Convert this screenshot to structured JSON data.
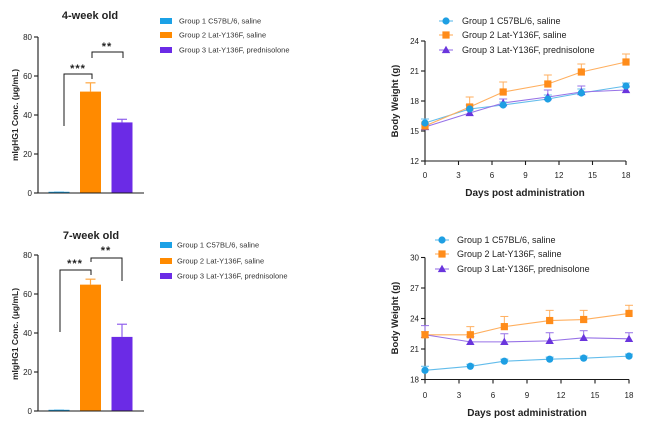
{
  "chart_data": [
    {
      "type": "bar",
      "title": "4-week old",
      "xlabel": "",
      "ylabel": "mIgHG1 Conc. (μg/mL)",
      "ylim": [
        0,
        80
      ],
      "yticks": [
        0,
        20,
        40,
        60,
        80
      ],
      "grid": false,
      "legend": "right",
      "categories": [
        "Group 1 C57BL/6, saline",
        "Group 2 Lat-Y136F, saline",
        "Group 3 Lat-Y136F, prednisolone"
      ],
      "values": [
        0.3,
        52.0,
        36.2
      ],
      "errors": [
        0.1,
        4.5,
        1.6
      ],
      "colors": [
        "#1BA1E6",
        "#FF8A00",
        "#6B2BE6"
      ],
      "significance": [
        {
          "between": [
            0,
            1
          ],
          "label": "***"
        },
        {
          "between": [
            1,
            2
          ],
          "label": "**"
        }
      ]
    },
    {
      "type": "line",
      "title": "",
      "xlabel": "Days post administration",
      "ylabel": "Body Weight (g)",
      "xlim": [
        0,
        18
      ],
      "xticks": [
        0,
        3,
        6,
        9,
        12,
        15,
        18
      ],
      "ylim": [
        12,
        24
      ],
      "yticks": [
        12,
        15,
        18,
        21,
        24
      ],
      "grid": false,
      "legend": "top-left",
      "x": [
        0,
        4,
        7,
        11,
        14,
        18
      ],
      "series": [
        {
          "name": "Group 1 C57BL/6, saline",
          "marker": "circle",
          "color": "#1E9FE3",
          "values": [
            15.8,
            17.2,
            17.6,
            18.2,
            18.8,
            19.5
          ],
          "errors": [
            0.4,
            0.4,
            0.3,
            0.4,
            0.4,
            0.3
          ]
        },
        {
          "name": "Group 2 Lat-Y136F, saline",
          "marker": "square",
          "color": "#FF8C1A",
          "values": [
            15.5,
            17.4,
            18.9,
            19.7,
            20.9,
            21.9
          ],
          "errors": [
            0.4,
            1.0,
            1.0,
            0.9,
            0.8,
            0.8
          ]
        },
        {
          "name": "Group 3 Lat-Y136F,  prednisolone",
          "marker": "triangle",
          "color": "#6A35DD",
          "values": [
            15.4,
            16.8,
            17.8,
            18.4,
            18.9,
            19.1
          ],
          "errors": [
            0.3,
            0.3,
            0.4,
            0.7,
            0.6,
            0.3
          ]
        }
      ]
    },
    {
      "type": "bar",
      "title": "7-week old",
      "xlabel": "",
      "ylabel": "mIgHG1 Conc. (μg/mL)",
      "ylim": [
        0,
        80
      ],
      "yticks": [
        0,
        20,
        40,
        60,
        80
      ],
      "grid": false,
      "legend": "right",
      "categories": [
        "Group 1 C57BL/6, saline",
        "Group 2 Lat-Y136F, saline",
        "Group 3 Lat-Y136F, prednisolone"
      ],
      "values": [
        0.3,
        64.8,
        38.0
      ],
      "errors": [
        0.1,
        2.8,
        6.5
      ],
      "colors": [
        "#1BA1E6",
        "#FF8A00",
        "#6B2BE6"
      ],
      "significance": [
        {
          "between": [
            0,
            1
          ],
          "label": "***"
        },
        {
          "between": [
            1,
            2
          ],
          "label": "**"
        }
      ]
    },
    {
      "type": "line",
      "title": "",
      "xlabel": "Days post administration",
      "ylabel": "Body Weight (g)",
      "xlim": [
        0,
        18
      ],
      "xticks": [
        0,
        3,
        6,
        9,
        12,
        15,
        18
      ],
      "ylim": [
        18,
        30
      ],
      "yticks": [
        18,
        21,
        24,
        27,
        30
      ],
      "grid": false,
      "legend": "top-left",
      "x": [
        0,
        4,
        7,
        11,
        14,
        18
      ],
      "series": [
        {
          "name": "Group 1 C57BL/6, saline",
          "marker": "circle",
          "color": "#1E9FE3",
          "values": [
            18.9,
            19.3,
            19.8,
            20.0,
            20.1,
            20.3
          ],
          "errors": [
            0.4,
            0.2,
            0.2,
            0.2,
            0.2,
            0.2
          ]
        },
        {
          "name": "Group 2 Lat-Y136F, saline",
          "marker": "square",
          "color": "#FF8C1A",
          "values": [
            22.4,
            22.4,
            23.2,
            23.8,
            23.9,
            24.5
          ],
          "errors": [
            0.3,
            0.8,
            1.0,
            1.0,
            0.9,
            0.8
          ]
        },
        {
          "name": "Group 3 Lat-Y136F, prednisolone",
          "marker": "triangle",
          "color": "#6A35DD",
          "values": [
            22.4,
            21.7,
            21.7,
            21.8,
            22.1,
            22.0
          ],
          "errors": [
            0.9,
            0.5,
            0.8,
            0.8,
            0.7,
            0.6
          ]
        }
      ]
    }
  ]
}
